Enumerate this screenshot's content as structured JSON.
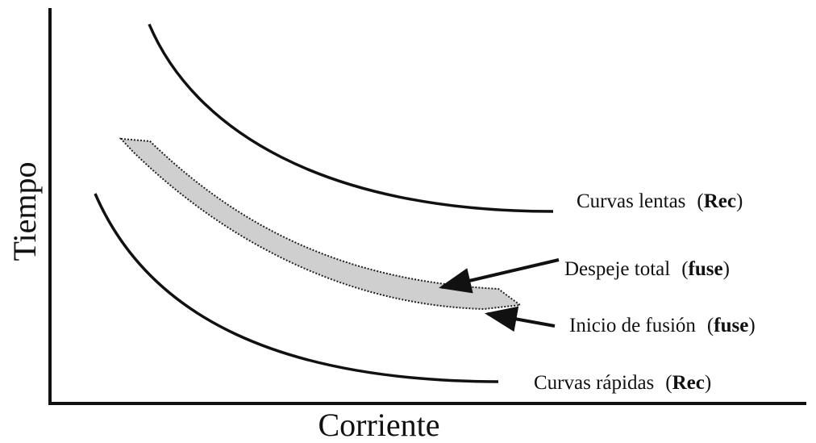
{
  "axes": {
    "y_label": "Tiempo",
    "x_label": "Corriente"
  },
  "labels": [
    {
      "text": "Curvas lentas",
      "open": "(",
      "tag": "Rec",
      "close": ")"
    },
    {
      "text": "Despeje total",
      "open": "(",
      "tag": "fuse",
      "close": ")"
    },
    {
      "text": "Inicio de fusión",
      "open": "(",
      "tag": "fuse",
      "close": ")"
    },
    {
      "text": "Curvas rápidas",
      "open": "(",
      "tag": "Rec",
      "close": ")"
    }
  ]
}
